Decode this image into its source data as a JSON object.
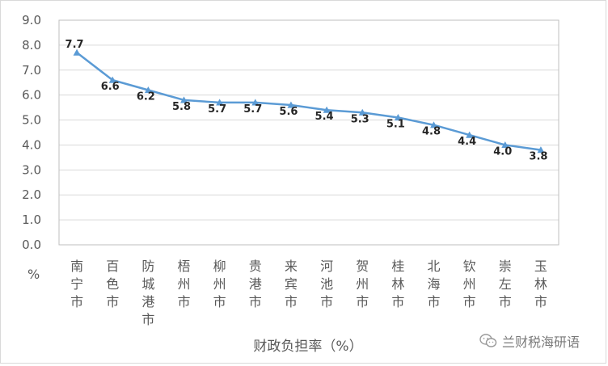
{
  "chart_data": {
    "type": "line",
    "categories": [
      "南宁市",
      "百色市",
      "防城港市",
      "梧州市",
      "柳州市",
      "贵港市",
      "来宾市",
      "河池市",
      "贺州市",
      "桂林市",
      "北海市",
      "钦州市",
      "崇左市",
      "玉林市"
    ],
    "values": [
      7.7,
      6.6,
      6.2,
      5.8,
      5.7,
      5.7,
      5.6,
      5.4,
      5.3,
      5.1,
      4.8,
      4.4,
      4.0,
      3.8
    ],
    "data_labels": [
      "7.7",
      "6.6",
      "6.2",
      "5.8",
      "5.7",
      "5.7",
      "5.6",
      "5.4",
      "5.3",
      "5.1",
      "4.8",
      "4.4",
      "4.0",
      "3.8"
    ],
    "y_ticks": [
      "0.0",
      "1.0",
      "2.0",
      "3.0",
      "4.0",
      "5.0",
      "6.0",
      "7.0",
      "8.0",
      "9.0"
    ],
    "ylim": [
      0,
      9
    ],
    "y_unit": "%",
    "xlabel": "财政负担率（%）",
    "grid": true,
    "marker": "triangle",
    "line_color": "#5b9bd5"
  },
  "watermark": {
    "text": "兰财税海研语",
    "icon": "wechat-chat-bubbles-icon"
  }
}
